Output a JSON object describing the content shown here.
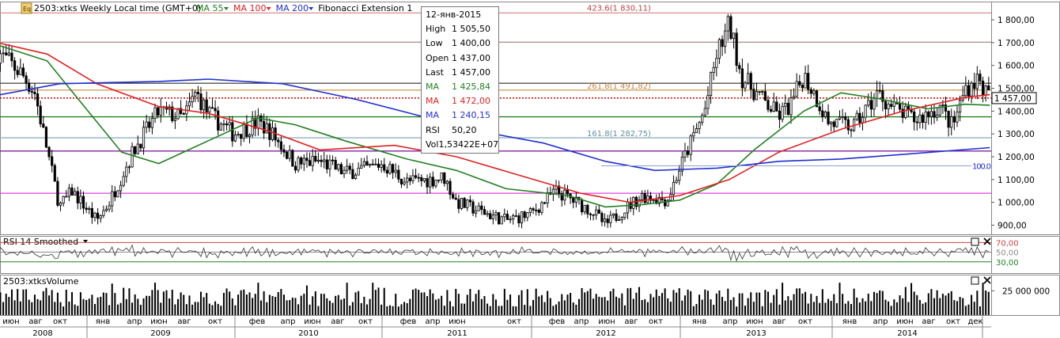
{
  "header": {
    "symbol_icon": "Eq",
    "symbol": "2503:xtks",
    "period": "Weekly",
    "timezone": "Local time (GMT+0)",
    "indicators": [
      {
        "label": "MA 55",
        "color": "#208020"
      },
      {
        "label": "MA 100",
        "color": "#e02020"
      },
      {
        "label": "MA 200",
        "color": "#2030d0"
      },
      {
        "label": "Fibonacci Extension 1",
        "color": "#000000"
      }
    ]
  },
  "tooltip": {
    "date": "12-янв-2015",
    "rows": [
      {
        "k": "High",
        "v": "1 505,50",
        "color": "#000000"
      },
      {
        "k": "Low",
        "v": "1 400,00",
        "color": "#000000"
      },
      {
        "k": "Open",
        "v": "1 437,00",
        "color": "#000000"
      },
      {
        "k": "Last",
        "v": "1 457,00",
        "color": "#000000"
      },
      {
        "k": "MA",
        "v": "1 425,84",
        "color": "#208020"
      },
      {
        "k": "MA",
        "v": "1 472,00",
        "color": "#e02020"
      },
      {
        "k": "MA",
        "v": "1 240,15",
        "color": "#2030d0"
      },
      {
        "k": "RSI",
        "v": "50,20",
        "color": "#000000"
      },
      {
        "k": "Vol",
        "v": "1,53422E+07",
        "color": "#000000"
      }
    ]
  },
  "fib_labels": [
    "423.6(1 830,11)",
    "261.8(1 491,82)",
    "161.8(1 282,75)",
    "100.0"
  ],
  "price_axis": {
    "ticks": [
      "1 800,00",
      "1 700,00",
      "1 600,00",
      "1 500,00",
      "1 400,00",
      "1 300,00",
      "1 200,00",
      "1 100,00",
      "1 000,00",
      "900,00"
    ],
    "last_label": "1 457,00"
  },
  "rsi_panel": {
    "title": "RSI 14 Smoothed",
    "levels": [
      "70,00",
      "50,00",
      "30,00"
    ]
  },
  "volume_panel": {
    "title": "2503:xtksVolume",
    "tick": "25 000 000"
  },
  "x_axis": {
    "months": [
      "июн",
      "авг",
      "окт",
      "янв",
      "апр",
      "июн",
      "авг",
      "окт",
      "фев",
      "апр",
      "июн",
      "авг",
      "окт",
      "фев",
      "апр",
      "июн",
      "окт",
      "фев",
      "апр",
      "июн",
      "авг",
      "окт",
      "янв",
      "апр",
      "июн",
      "авг",
      "окт",
      "янв",
      "апр",
      "июн",
      "авг",
      "окт",
      "дек"
    ],
    "years": [
      "2008",
      "2009",
      "2010",
      "2011",
      "2012",
      "2013",
      "2014"
    ]
  },
  "chart_data": {
    "type": "candlestick",
    "interval": "weekly",
    "x_range": [
      "2008-05",
      "2015-01"
    ],
    "ylim": [
      860,
      1880
    ],
    "price_anchors": [
      [
        "2008-05",
        1660
      ],
      [
        "2008-07",
        1560
      ],
      [
        "2008-08",
        1480
      ],
      [
        "2008-10",
        980
      ],
      [
        "2008-11",
        1050
      ],
      [
        "2009-01",
        920
      ],
      [
        "2009-02",
        1000
      ],
      [
        "2009-04",
        1230
      ],
      [
        "2009-06",
        1400
      ],
      [
        "2009-08",
        1370
      ],
      [
        "2009-09",
        1480
      ],
      [
        "2009-10",
        1390
      ],
      [
        "2009-12",
        1300
      ],
      [
        "2010-02",
        1350
      ],
      [
        "2010-03",
        1310
      ],
      [
        "2010-05",
        1170
      ],
      [
        "2010-07",
        1180
      ],
      [
        "2010-09",
        1130
      ],
      [
        "2010-11",
        1150
      ],
      [
        "2010-12",
        1170
      ],
      [
        "2011-02",
        1090
      ],
      [
        "2011-04",
        1100
      ],
      [
        "2011-05",
        1110
      ],
      [
        "2011-06",
        1000
      ],
      [
        "2011-08",
        960
      ],
      [
        "2011-10",
        920
      ],
      [
        "2011-12",
        950
      ],
      [
        "2012-02",
        1050
      ],
      [
        "2012-03",
        1020
      ],
      [
        "2012-05",
        960
      ],
      [
        "2012-06",
        900
      ],
      [
        "2012-08",
        990
      ],
      [
        "2012-09",
        1030
      ],
      [
        "2012-11",
        1010
      ],
      [
        "2012-12",
        1150
      ],
      [
        "2013-02",
        1400
      ],
      [
        "2013-03",
        1650
      ],
      [
        "2013-04",
        1780
      ],
      [
        "2013-05",
        1550
      ],
      [
        "2013-07",
        1430
      ],
      [
        "2013-08",
        1380
      ],
      [
        "2013-09",
        1430
      ],
      [
        "2013-10",
        1560
      ],
      [
        "2013-11",
        1460
      ],
      [
        "2013-12",
        1350
      ],
      [
        "2014-02",
        1330
      ],
      [
        "2014-04",
        1480
      ],
      [
        "2014-05",
        1420
      ],
      [
        "2014-07",
        1360
      ],
      [
        "2014-09",
        1420
      ],
      [
        "2014-10",
        1330
      ],
      [
        "2014-11",
        1500
      ],
      [
        "2014-12",
        1540
      ],
      [
        "2015-01",
        1457
      ]
    ],
    "moving_averages": [
      {
        "name": "MA 55",
        "color": "#208020",
        "points": [
          [
            "2008-05",
            1690
          ],
          [
            "2008-09",
            1620
          ],
          [
            "2008-12",
            1420
          ],
          [
            "2009-03",
            1220
          ],
          [
            "2009-06",
            1170
          ],
          [
            "2009-10",
            1270
          ],
          [
            "2010-02",
            1370
          ],
          [
            "2010-05",
            1340
          ],
          [
            "2010-09",
            1270
          ],
          [
            "2011-02",
            1190
          ],
          [
            "2011-06",
            1140
          ],
          [
            "2011-10",
            1060
          ],
          [
            "2012-03",
            1030
          ],
          [
            "2012-06",
            980
          ],
          [
            "2012-09",
            990
          ],
          [
            "2012-12",
            1010
          ],
          [
            "2013-03",
            1080
          ],
          [
            "2013-06",
            1230
          ],
          [
            "2013-10",
            1400
          ],
          [
            "2014-01",
            1480
          ],
          [
            "2014-04",
            1455
          ],
          [
            "2014-08",
            1410
          ],
          [
            "2014-11",
            1430
          ],
          [
            "2015-01",
            1426
          ]
        ]
      },
      {
        "name": "MA 100",
        "color": "#e02020",
        "points": [
          [
            "2008-05",
            1700
          ],
          [
            "2008-09",
            1650
          ],
          [
            "2009-01",
            1520
          ],
          [
            "2009-06",
            1420
          ],
          [
            "2009-10",
            1390
          ],
          [
            "2010-03",
            1310
          ],
          [
            "2010-07",
            1230
          ],
          [
            "2011-01",
            1250
          ],
          [
            "2011-06",
            1200
          ],
          [
            "2011-11",
            1120
          ],
          [
            "2012-04",
            1040
          ],
          [
            "2012-08",
            1000
          ],
          [
            "2012-12",
            1030
          ],
          [
            "2013-04",
            1100
          ],
          [
            "2013-08",
            1220
          ],
          [
            "2014-01",
            1320
          ],
          [
            "2014-06",
            1400
          ],
          [
            "2014-11",
            1460
          ],
          [
            "2015-01",
            1472
          ]
        ]
      },
      {
        "name": "MA 200",
        "color": "#2030d0",
        "points": [
          [
            "2008-05",
            1470
          ],
          [
            "2008-10",
            1520
          ],
          [
            "2009-06",
            1530
          ],
          [
            "2009-10",
            1540
          ],
          [
            "2010-04",
            1520
          ],
          [
            "2010-10",
            1450
          ],
          [
            "2011-03",
            1380
          ],
          [
            "2011-08",
            1310
          ],
          [
            "2012-01",
            1260
          ],
          [
            "2012-06",
            1180
          ],
          [
            "2012-10",
            1140
          ],
          [
            "2013-03",
            1150
          ],
          [
            "2013-08",
            1180
          ],
          [
            "2014-01",
            1190
          ],
          [
            "2014-06",
            1210
          ],
          [
            "2015-01",
            1240
          ]
        ]
      }
    ],
    "horizontal_levels": [
      {
        "value": 1830,
        "color": "#d89090",
        "label": "423.6(1 830,11)"
      },
      {
        "value": 1702,
        "color": "#b09090"
      },
      {
        "value": 1522,
        "color": "#505050"
      },
      {
        "value": 1492,
        "color": "#d0a060",
        "label": "261.8(1 491,82)"
      },
      {
        "value": 1457,
        "color": "#d00000",
        "style": "dotted"
      },
      {
        "value": 1375,
        "color": "#208020"
      },
      {
        "value": 1283,
        "color": "#90b0c0",
        "label": "161.8(1 282,75)"
      },
      {
        "value": 1225,
        "color": "#8020a0"
      },
      {
        "value": 1040,
        "color": "#e040e0"
      }
    ],
    "rsi": {
      "levels": [
        70,
        50,
        30
      ]
    },
    "volume_axis_tick": 25000000
  }
}
